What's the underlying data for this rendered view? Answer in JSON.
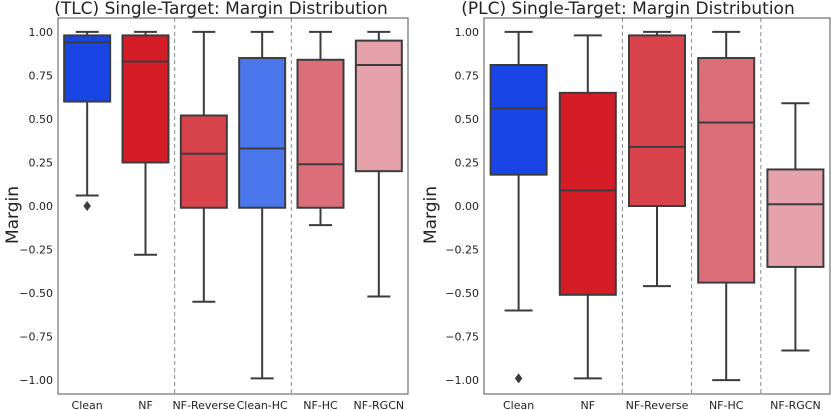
{
  "chart_data": [
    {
      "type": "boxplot",
      "title": "(TLC) Single-Target: Margin Distribution",
      "xlabel": "",
      "ylabel": "Margin",
      "ylim": [
        -1.08,
        1.08
      ],
      "yticks": [
        1.0,
        0.75,
        0.5,
        0.25,
        0.0,
        -0.25,
        -0.5,
        -0.75,
        -1.0
      ],
      "ytick_labels": [
        "1.00",
        "0.75",
        "0.50",
        "0.25",
        "0.00",
        "−0.25",
        "−0.50",
        "−0.75",
        "−1.00"
      ],
      "separators_after": [
        1,
        3
      ],
      "boxes": [
        {
          "category": "Clean",
          "color": "#1a45e6",
          "whisker_low": 0.06,
          "q1": 0.6,
          "median": 0.94,
          "q3": 0.98,
          "whisker_high": 1.0,
          "outliers": [
            0.0
          ]
        },
        {
          "category": "NF",
          "color": "#d41d27",
          "whisker_low": -0.28,
          "q1": 0.25,
          "median": 0.83,
          "q3": 0.98,
          "whisker_high": 1.0,
          "outliers": []
        },
        {
          "category": "NF-Reverse",
          "color": "#d9434c",
          "whisker_low": -0.55,
          "q1": -0.01,
          "median": 0.3,
          "q3": 0.52,
          "whisker_high": 1.0,
          "outliers": []
        },
        {
          "category": "Clean-HC",
          "color": "#4a78ec",
          "whisker_low": -0.99,
          "q1": -0.01,
          "median": 0.33,
          "q3": 0.85,
          "whisker_high": 1.0,
          "outliers": []
        },
        {
          "category": "NF-HC",
          "color": "#db6e78",
          "whisker_low": -0.11,
          "q1": -0.01,
          "median": 0.24,
          "q3": 0.84,
          "whisker_high": 1.0,
          "outliers": []
        },
        {
          "category": "NF-RGCN",
          "color": "#e5a2aa",
          "whisker_low": -0.52,
          "q1": 0.2,
          "median": 0.81,
          "q3": 0.95,
          "whisker_high": 1.0,
          "outliers": []
        }
      ]
    },
    {
      "type": "boxplot",
      "title": "(PLC) Single-Target: Margin Distribution",
      "xlabel": "",
      "ylabel": "Margin",
      "ylim": [
        -1.08,
        1.08
      ],
      "yticks": [
        1.0,
        0.75,
        0.5,
        0.25,
        0.0,
        -0.25,
        -0.5,
        -0.75,
        -1.0
      ],
      "ytick_labels": [
        "1.00",
        "0.75",
        "0.50",
        "0.25",
        "0.00",
        "−0.25",
        "−0.50",
        "−0.75",
        "−1.00"
      ],
      "separators_after": [
        1,
        2,
        3
      ],
      "boxes": [
        {
          "category": "Clean",
          "color": "#1a45e6",
          "whisker_low": -0.6,
          "q1": 0.18,
          "median": 0.56,
          "q3": 0.81,
          "whisker_high": 1.0,
          "outliers": [
            -0.99
          ]
        },
        {
          "category": "NF",
          "color": "#d41d27",
          "whisker_low": -0.99,
          "q1": -0.51,
          "median": 0.09,
          "q3": 0.65,
          "whisker_high": 0.98,
          "outliers": []
        },
        {
          "category": "NF-Reverse",
          "color": "#d9434c",
          "whisker_low": -0.46,
          "q1": 0.0,
          "median": 0.34,
          "q3": 0.98,
          "whisker_high": 1.0,
          "outliers": []
        },
        {
          "category": "NF-HC",
          "color": "#db6e78",
          "whisker_low": -1.0,
          "q1": -0.44,
          "median": 0.48,
          "q3": 0.85,
          "whisker_high": 1.0,
          "outliers": []
        },
        {
          "category": "NF-RGCN",
          "color": "#e5a2aa",
          "whisker_low": -0.83,
          "q1": -0.35,
          "median": 0.01,
          "q3": 0.21,
          "whisker_high": 0.59,
          "outliers": []
        }
      ]
    }
  ]
}
